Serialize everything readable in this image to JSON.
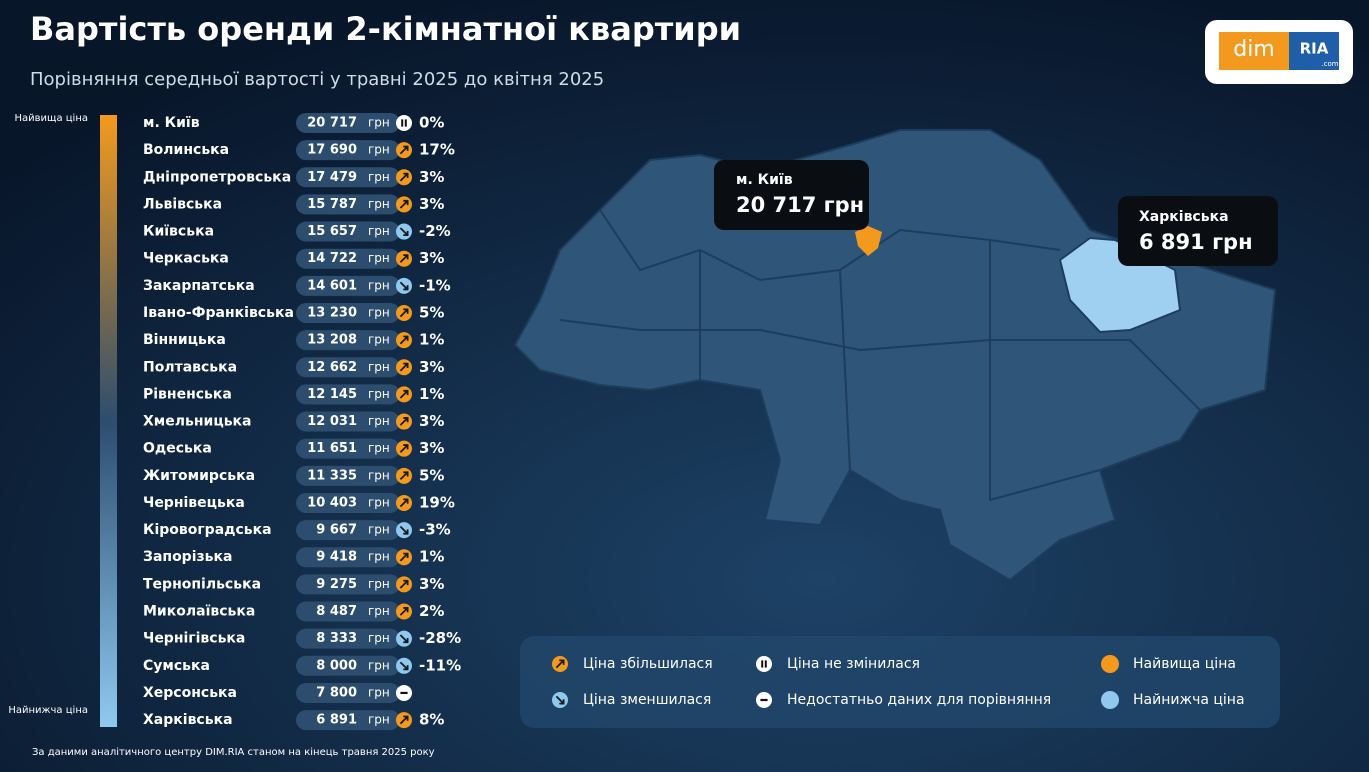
{
  "header": {
    "title": "Вартість оренди 2-кімнатної квартири",
    "subtitle": "Порівняння середньої вартості у травні 2025 до квітня 2025"
  },
  "logo": {
    "left": "dim",
    "right": "RIA",
    "domain": ".com"
  },
  "scale": {
    "top": "Найвища ціна",
    "bottom": "Найнижча ціна",
    "top_color": "#f39a1e",
    "bottom_color": "#8fc9f0"
  },
  "table": {
    "unit": "грн",
    "rows": [
      {
        "name": "м. Київ",
        "price": "20 717",
        "trend": "same",
        "change": "0%"
      },
      {
        "name": "Волинська",
        "price": "17 690",
        "trend": "up",
        "change": "17%"
      },
      {
        "name": "Дніпропетровська",
        "price": "17 479",
        "trend": "up",
        "change": "3%"
      },
      {
        "name": "Львівська",
        "price": "15 787",
        "trend": "up",
        "change": "3%"
      },
      {
        "name": "Київська",
        "price": "15 657",
        "trend": "down",
        "change": "-2%"
      },
      {
        "name": "Черкаська",
        "price": "14 722",
        "trend": "up",
        "change": "3%"
      },
      {
        "name": "Закарпатська",
        "price": "14 601",
        "trend": "down",
        "change": "-1%"
      },
      {
        "name": "Івано-Франківська",
        "price": "13 230",
        "trend": "up",
        "change": "5%"
      },
      {
        "name": "Вінницька",
        "price": "13 208",
        "trend": "up",
        "change": "1%"
      },
      {
        "name": "Полтавська",
        "price": "12 662",
        "trend": "up",
        "change": "3%"
      },
      {
        "name": "Рівненська",
        "price": "12 145",
        "trend": "up",
        "change": "1%"
      },
      {
        "name": "Хмельницька",
        "price": "12 031",
        "trend": "up",
        "change": "3%"
      },
      {
        "name": "Одеська",
        "price": "11 651",
        "trend": "up",
        "change": "3%"
      },
      {
        "name": "Житомирська",
        "price": "11 335",
        "trend": "up",
        "change": "5%"
      },
      {
        "name": "Чернівецька",
        "price": "10 403",
        "trend": "up",
        "change": "19%"
      },
      {
        "name": "Кіровоградська",
        "price": "9 667",
        "trend": "down",
        "change": "-3%"
      },
      {
        "name": "Запорізька",
        "price": "9 418",
        "trend": "up",
        "change": "1%"
      },
      {
        "name": "Тернопільська",
        "price": "9 275",
        "trend": "up",
        "change": "3%"
      },
      {
        "name": "Миколаївська",
        "price": "8 487",
        "trend": "up",
        "change": "2%"
      },
      {
        "name": "Чернігівська",
        "price": "8 333",
        "trend": "down",
        "change": "-28%"
      },
      {
        "name": "Сумська",
        "price": "8 000",
        "trend": "down",
        "change": "-11%"
      },
      {
        "name": "Херсонська",
        "price": "7 800",
        "trend": "none"
      },
      {
        "name": "Харківська",
        "price": "6 891",
        "trend": "up",
        "change": "8%"
      }
    ]
  },
  "map": {
    "callouts": [
      {
        "name": "м. Київ",
        "price": "20 717 грн"
      },
      {
        "name": "Харківська",
        "price": "6 891 грн"
      }
    ]
  },
  "legend": {
    "items": [
      {
        "icon": "up",
        "label": "Ціна збільшилася"
      },
      {
        "icon": "same",
        "label": "Ціна не змінилася"
      },
      {
        "icon": "high",
        "label": "Найвища ціна"
      },
      {
        "icon": "down",
        "label": "Ціна зменшилася"
      },
      {
        "icon": "none",
        "label": "Недостатньо даних для порівняння"
      },
      {
        "icon": "low",
        "label": "Найнижча ціна"
      }
    ]
  },
  "footer": "За даними аналітичного центру DIM.RIA станом на кінець травня 2025 року"
}
